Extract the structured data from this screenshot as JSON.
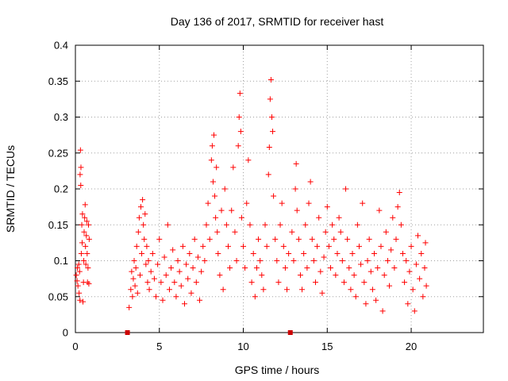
{
  "chart_data": {
    "type": "scatter",
    "title": "Day 136 of 2017, SRMTID for receiver hast",
    "xlabel": "GPS time / hours",
    "ylabel": "SRMTID / TECUs",
    "xlim": [
      0,
      24.3
    ],
    "ylim": [
      0,
      0.4
    ],
    "xticks": [
      0,
      5,
      10,
      15,
      20
    ],
    "xtick_labels": [
      "0",
      "5",
      "10",
      "15",
      "20"
    ],
    "yticks": [
      0,
      0.05,
      0.1,
      0.15,
      0.2,
      0.25,
      0.3,
      0.35,
      0.4
    ],
    "ytick_labels": [
      "0",
      "0.05",
      "0.1",
      "0.15",
      "0.2",
      "0.25",
      "0.3",
      "0.35",
      "0.4"
    ],
    "grid": true,
    "marker": "+",
    "color": "#ff0000",
    "gap_marker_color": "#cc0000",
    "gap_markers": [
      3.1,
      12.8
    ],
    "points": [
      [
        0.05,
        0.08
      ],
      [
        0.1,
        0.072
      ],
      [
        0.12,
        0.09
      ],
      [
        0.15,
        0.065
      ],
      [
        0.2,
        0.095
      ],
      [
        0.22,
        0.055
      ],
      [
        0.25,
        0.085
      ],
      [
        0.27,
        0.045
      ],
      [
        0.28,
        0.22
      ],
      [
        0.3,
        0.254
      ],
      [
        0.32,
        0.205
      ],
      [
        0.33,
        0.23
      ],
      [
        0.35,
        0.11
      ],
      [
        0.38,
        0.15
      ],
      [
        0.4,
        0.125
      ],
      [
        0.42,
        0.165
      ],
      [
        0.45,
        0.043
      ],
      [
        0.48,
        0.07
      ],
      [
        0.5,
        0.1
      ],
      [
        0.52,
        0.14
      ],
      [
        0.55,
        0.16
      ],
      [
        0.58,
        0.178
      ],
      [
        0.6,
        0.12
      ],
      [
        0.62,
        0.095
      ],
      [
        0.65,
        0.135
      ],
      [
        0.68,
        0.155
      ],
      [
        0.7,
        0.11
      ],
      [
        0.72,
        0.07
      ],
      [
        0.75,
        0.09
      ],
      [
        0.78,
        0.15
      ],
      [
        0.8,
        0.068
      ],
      [
        0.82,
        0.13
      ],
      [
        3.2,
        0.035
      ],
      [
        3.3,
        0.06
      ],
      [
        3.35,
        0.085
      ],
      [
        3.4,
        0.05
      ],
      [
        3.45,
        0.075
      ],
      [
        3.5,
        0.1
      ],
      [
        3.55,
        0.065
      ],
      [
        3.6,
        0.09
      ],
      [
        3.65,
        0.12
      ],
      [
        3.7,
        0.055
      ],
      [
        3.75,
        0.14
      ],
      [
        3.8,
        0.16
      ],
      [
        3.85,
        0.08
      ],
      [
        3.9,
        0.175
      ],
      [
        3.95,
        0.11
      ],
      [
        4.0,
        0.185
      ],
      [
        4.05,
        0.15
      ],
      [
        4.1,
        0.13
      ],
      [
        4.15,
        0.165
      ],
      [
        4.2,
        0.095
      ],
      [
        4.25,
        0.12
      ],
      [
        4.3,
        0.07
      ],
      [
        4.35,
        0.1
      ],
      [
        4.4,
        0.06
      ],
      [
        4.5,
        0.085
      ],
      [
        4.6,
        0.11
      ],
      [
        4.7,
        0.075
      ],
      [
        4.8,
        0.05
      ],
      [
        4.9,
        0.095
      ],
      [
        5.0,
        0.13
      ],
      [
        5.1,
        0.07
      ],
      [
        5.2,
        0.045
      ],
      [
        5.3,
        0.105
      ],
      [
        5.4,
        0.08
      ],
      [
        5.5,
        0.15
      ],
      [
        5.6,
        0.06
      ],
      [
        5.7,
        0.09
      ],
      [
        5.8,
        0.115
      ],
      [
        5.9,
        0.07
      ],
      [
        6.0,
        0.05
      ],
      [
        6.1,
        0.1
      ],
      [
        6.2,
        0.085
      ],
      [
        6.3,
        0.065
      ],
      [
        6.4,
        0.12
      ],
      [
        6.5,
        0.04
      ],
      [
        6.6,
        0.095
      ],
      [
        6.7,
        0.075
      ],
      [
        6.8,
        0.11
      ],
      [
        6.9,
        0.055
      ],
      [
        7.0,
        0.09
      ],
      [
        7.1,
        0.13
      ],
      [
        7.2,
        0.07
      ],
      [
        7.3,
        0.105
      ],
      [
        7.4,
        0.045
      ],
      [
        7.5,
        0.085
      ],
      [
        7.6,
        0.12
      ],
      [
        7.7,
        0.1
      ],
      [
        7.8,
        0.15
      ],
      [
        7.9,
        0.18
      ],
      [
        8.0,
        0.13
      ],
      [
        8.1,
        0.24
      ],
      [
        8.15,
        0.26
      ],
      [
        8.2,
        0.21
      ],
      [
        8.25,
        0.275
      ],
      [
        8.3,
        0.19
      ],
      [
        8.35,
        0.16
      ],
      [
        8.4,
        0.23
      ],
      [
        8.45,
        0.14
      ],
      [
        8.5,
        0.11
      ],
      [
        8.6,
        0.08
      ],
      [
        8.7,
        0.17
      ],
      [
        8.8,
        0.06
      ],
      [
        8.9,
        0.2
      ],
      [
        9.0,
        0.15
      ],
      [
        9.1,
        0.12
      ],
      [
        9.2,
        0.09
      ],
      [
        9.3,
        0.17
      ],
      [
        9.4,
        0.23
      ],
      [
        9.5,
        0.14
      ],
      [
        9.6,
        0.1
      ],
      [
        9.7,
        0.26
      ],
      [
        9.75,
        0.3
      ],
      [
        9.8,
        0.333
      ],
      [
        9.85,
        0.28
      ],
      [
        9.9,
        0.16
      ],
      [
        10.0,
        0.12
      ],
      [
        10.1,
        0.09
      ],
      [
        10.2,
        0.18
      ],
      [
        10.3,
        0.24
      ],
      [
        10.4,
        0.15
      ],
      [
        10.5,
        0.07
      ],
      [
        10.6,
        0.11
      ],
      [
        10.7,
        0.05
      ],
      [
        10.8,
        0.09
      ],
      [
        10.9,
        0.13
      ],
      [
        11.0,
        0.1
      ],
      [
        11.1,
        0.08
      ],
      [
        11.2,
        0.06
      ],
      [
        11.3,
        0.15
      ],
      [
        11.4,
        0.12
      ],
      [
        11.5,
        0.22
      ],
      [
        11.55,
        0.258
      ],
      [
        11.6,
        0.325
      ],
      [
        11.65,
        0.352
      ],
      [
        11.7,
        0.3
      ],
      [
        11.75,
        0.28
      ],
      [
        11.8,
        0.19
      ],
      [
        11.9,
        0.13
      ],
      [
        12.0,
        0.1
      ],
      [
        12.1,
        0.07
      ],
      [
        12.2,
        0.15
      ],
      [
        12.3,
        0.18
      ],
      [
        12.4,
        0.12
      ],
      [
        12.5,
        0.09
      ],
      [
        12.6,
        0.06
      ],
      [
        12.7,
        0.11
      ],
      [
        12.9,
        0.14
      ],
      [
        13.0,
        0.1
      ],
      [
        13.1,
        0.2
      ],
      [
        13.15,
        0.235
      ],
      [
        13.2,
        0.17
      ],
      [
        13.3,
        0.13
      ],
      [
        13.4,
        0.08
      ],
      [
        13.5,
        0.06
      ],
      [
        13.6,
        0.11
      ],
      [
        13.7,
        0.15
      ],
      [
        13.8,
        0.09
      ],
      [
        13.9,
        0.18
      ],
      [
        14.0,
        0.21
      ],
      [
        14.1,
        0.13
      ],
      [
        14.2,
        0.1
      ],
      [
        14.3,
        0.07
      ],
      [
        14.4,
        0.12
      ],
      [
        14.5,
        0.16
      ],
      [
        14.6,
        0.085
      ],
      [
        14.7,
        0.055
      ],
      [
        14.8,
        0.105
      ],
      [
        14.9,
        0.14
      ],
      [
        15.0,
        0.175
      ],
      [
        15.1,
        0.12
      ],
      [
        15.2,
        0.09
      ],
      [
        15.3,
        0.15
      ],
      [
        15.4,
        0.13
      ],
      [
        15.5,
        0.08
      ],
      [
        15.6,
        0.11
      ],
      [
        15.7,
        0.16
      ],
      [
        15.8,
        0.14
      ],
      [
        15.9,
        0.1
      ],
      [
        16.0,
        0.07
      ],
      [
        16.1,
        0.2
      ],
      [
        16.2,
        0.13
      ],
      [
        16.3,
        0.09
      ],
      [
        16.4,
        0.06
      ],
      [
        16.5,
        0.11
      ],
      [
        16.6,
        0.08
      ],
      [
        16.7,
        0.05
      ],
      [
        16.8,
        0.15
      ],
      [
        16.9,
        0.12
      ],
      [
        17.0,
        0.095
      ],
      [
        17.1,
        0.18
      ],
      [
        17.2,
        0.07
      ],
      [
        17.3,
        0.04
      ],
      [
        17.4,
        0.1
      ],
      [
        17.5,
        0.13
      ],
      [
        17.6,
        0.085
      ],
      [
        17.7,
        0.06
      ],
      [
        17.8,
        0.11
      ],
      [
        17.9,
        0.045
      ],
      [
        18.0,
        0.09
      ],
      [
        18.1,
        0.17
      ],
      [
        18.2,
        0.12
      ],
      [
        18.3,
        0.03
      ],
      [
        18.4,
        0.08
      ],
      [
        18.5,
        0.14
      ],
      [
        18.6,
        0.1
      ],
      [
        18.7,
        0.065
      ],
      [
        18.8,
        0.115
      ],
      [
        18.9,
        0.16
      ],
      [
        19.0,
        0.09
      ],
      [
        19.1,
        0.13
      ],
      [
        19.2,
        0.175
      ],
      [
        19.3,
        0.195
      ],
      [
        19.4,
        0.15
      ],
      [
        19.5,
        0.11
      ],
      [
        19.6,
        0.07
      ],
      [
        19.7,
        0.1
      ],
      [
        19.8,
        0.04
      ],
      [
        19.9,
        0.085
      ],
      [
        20.0,
        0.12
      ],
      [
        20.1,
        0.06
      ],
      [
        20.2,
        0.03
      ],
      [
        20.3,
        0.095
      ],
      [
        20.4,
        0.135
      ],
      [
        20.5,
        0.075
      ],
      [
        20.6,
        0.11
      ],
      [
        20.7,
        0.05
      ],
      [
        20.8,
        0.09
      ],
      [
        20.85,
        0.125
      ],
      [
        20.9,
        0.065
      ]
    ]
  }
}
